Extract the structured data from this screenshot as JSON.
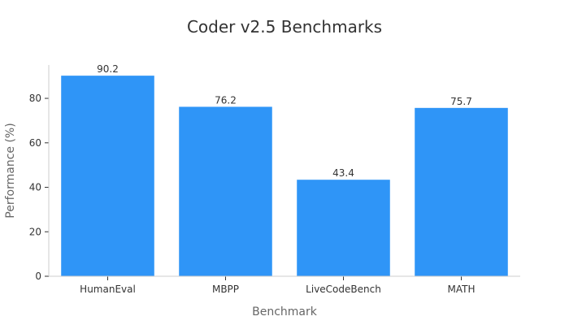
{
  "chart_data": {
    "type": "bar",
    "title": "Coder v2.5 Benchmarks",
    "xlabel": "Benchmark",
    "ylabel": "Performance (%)",
    "categories": [
      "HumanEval",
      "MBPP",
      "LiveCodeBench",
      "MATH"
    ],
    "values": [
      90.2,
      76.2,
      43.4,
      75.7
    ],
    "value_labels": [
      "90.2",
      "76.2",
      "43.4",
      "75.7"
    ],
    "ylim": [
      0,
      95
    ],
    "yticks": [
      0,
      20,
      40,
      60,
      80
    ],
    "ytick_labels": [
      "0",
      "20",
      "40",
      "60",
      "80"
    ],
    "grid": false,
    "legend": "none",
    "bar_color": "#2f95f7"
  }
}
